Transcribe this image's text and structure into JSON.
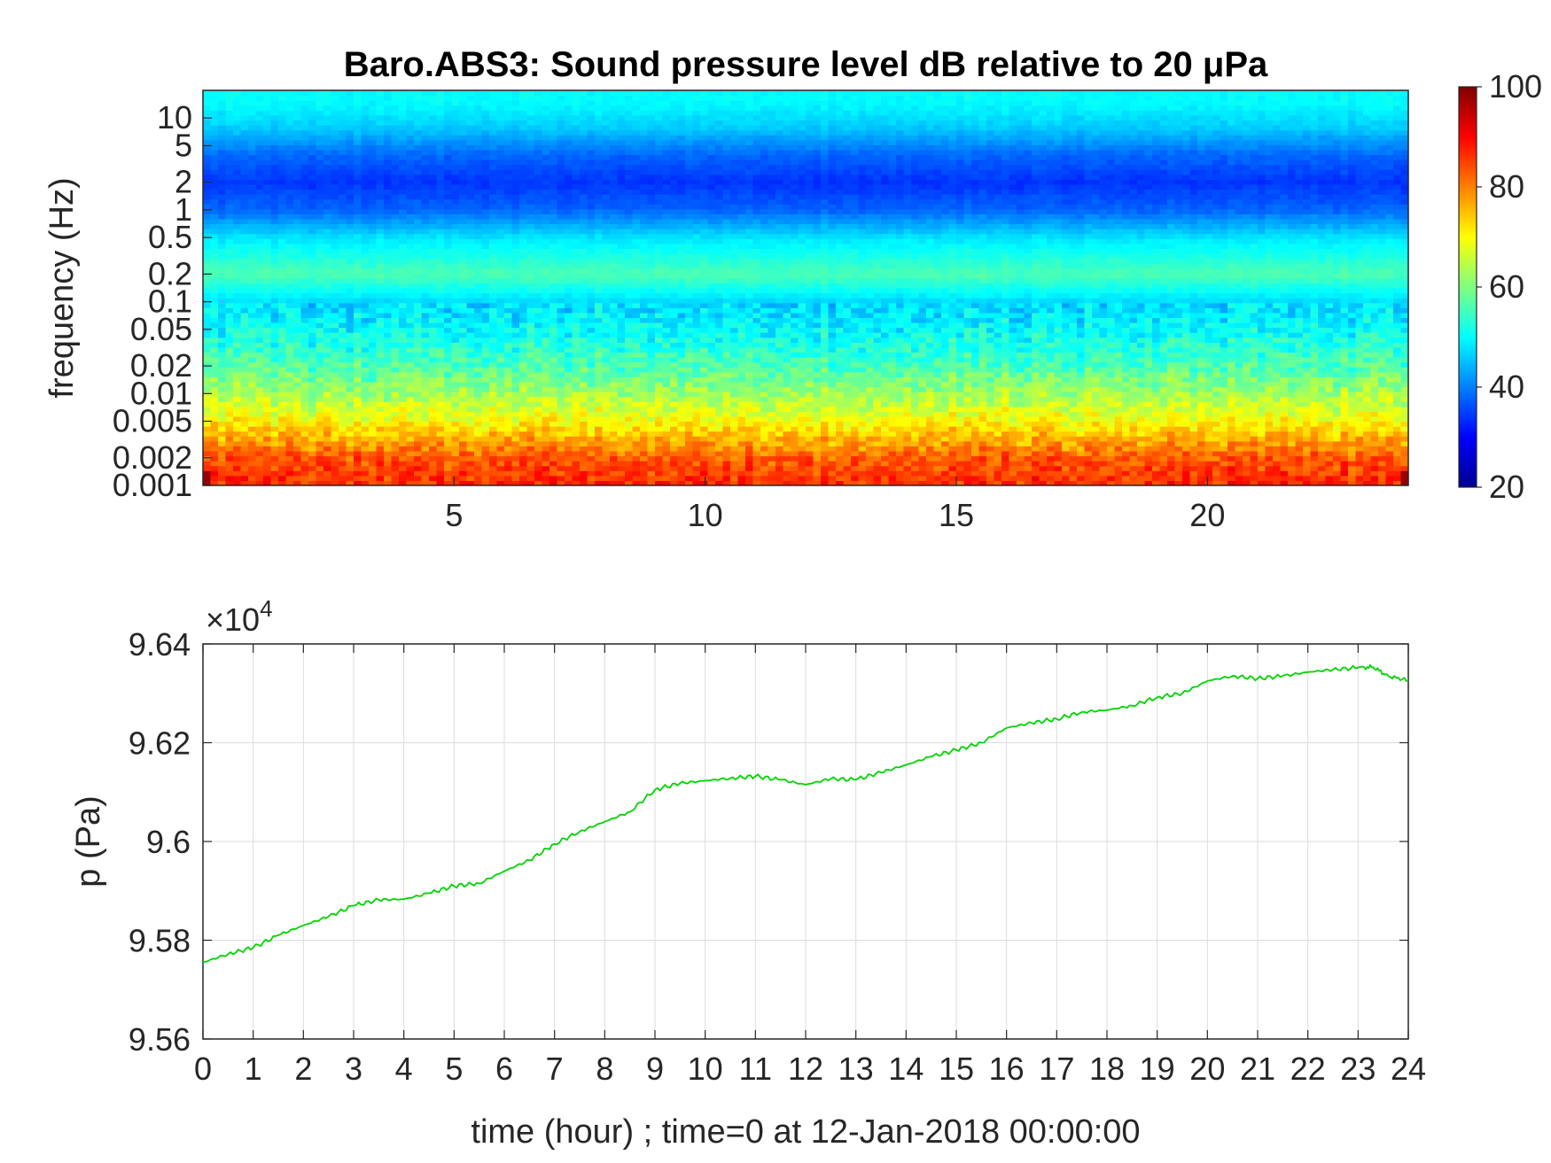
{
  "chart_data": [
    {
      "type": "heatmap",
      "title": "Baro.ABS3: Sound pressure level dB relative to 20 μPa",
      "ylabel": "frequency (Hz)",
      "xlabel": "",
      "x_ticks": [
        "5",
        "10",
        "15",
        "20"
      ],
      "x_tick_values": [
        5,
        10,
        15,
        20
      ],
      "xlim": [
        0,
        24
      ],
      "yscale": "log",
      "ylim": [
        0.001,
        20
      ],
      "y_ticks": [
        "10",
        "5",
        "2",
        "1",
        "0.5",
        "0.2",
        "0.1",
        "0.05",
        "0.02",
        "0.01",
        "0.005",
        "0.002",
        "0.001"
      ],
      "y_tick_values": [
        10,
        5,
        2,
        1,
        0.5,
        0.2,
        0.1,
        0.05,
        0.02,
        0.01,
        0.005,
        0.002,
        0.001
      ],
      "colormap": "jet",
      "colorbar": {
        "range": [
          20,
          100
        ],
        "ticks": [
          "100",
          "80",
          "60",
          "40",
          "20"
        ],
        "tick_values": [
          100,
          80,
          60,
          40,
          20
        ]
      },
      "spectral_profile_db": [
        {
          "freq_hz": 15,
          "db": 50
        },
        {
          "freq_hz": 8,
          "db": 46
        },
        {
          "freq_hz": 4,
          "db": 38
        },
        {
          "freq_hz": 2,
          "db": 34
        },
        {
          "freq_hz": 1,
          "db": 38
        },
        {
          "freq_hz": 0.5,
          "db": 48
        },
        {
          "freq_hz": 0.2,
          "db": 56
        },
        {
          "freq_hz": 0.1,
          "db": 47
        },
        {
          "freq_hz": 0.05,
          "db": 50
        },
        {
          "freq_hz": 0.02,
          "db": 56
        },
        {
          "freq_hz": 0.01,
          "db": 63
        },
        {
          "freq_hz": 0.005,
          "db": 70
        },
        {
          "freq_hz": 0.002,
          "db": 83
        },
        {
          "freq_hz": 0.001,
          "db": 87
        }
      ],
      "grid": false
    },
    {
      "type": "line",
      "ylabel": "p (Pa)",
      "xlabel": "time (hour) ; time=0 at 12-Jan-2018 00:00:00",
      "y_multiplier": "×10",
      "y_multiplier_exp": "4",
      "xlim": [
        0,
        24
      ],
      "ylim": [
        95600,
        96400
      ],
      "x_ticks": [
        "0",
        "1",
        "2",
        "3",
        "4",
        "5",
        "6",
        "7",
        "8",
        "9",
        "10",
        "11",
        "12",
        "13",
        "14",
        "15",
        "16",
        "17",
        "18",
        "19",
        "20",
        "21",
        "22",
        "23",
        "24"
      ],
      "x_tick_values": [
        0,
        1,
        2,
        3,
        4,
        5,
        6,
        7,
        8,
        9,
        10,
        11,
        12,
        13,
        14,
        15,
        16,
        17,
        18,
        19,
        20,
        21,
        22,
        23,
        24
      ],
      "y_ticks": [
        "9.64",
        "9.62",
        "9.6",
        "9.58",
        "9.56"
      ],
      "y_tick_values": [
        96400,
        96200,
        96000,
        95800,
        95600
      ],
      "grid": true,
      "color": "#00d400",
      "series": [
        {
          "x": [
            0,
            0.5,
            1,
            1.5,
            2,
            2.5,
            3,
            3.5,
            4,
            4.5,
            5,
            5.5,
            6,
            6.5,
            7,
            7.5,
            8,
            8.5,
            9,
            9.5,
            10,
            10.5,
            11,
            11.5,
            12,
            12.5,
            13,
            13.5,
            14,
            14.5,
            15,
            15.5,
            16,
            16.5,
            17,
            17.5,
            18,
            18.5,
            19,
            19.5,
            20,
            20.5,
            21,
            21.5,
            22,
            22.5,
            23,
            23.3,
            23.6,
            24
          ],
          "y": [
            95755,
            95772,
            95785,
            95810,
            95830,
            95848,
            95870,
            95882,
            95883,
            95895,
            95910,
            95915,
            95940,
            95962,
            95995,
            96020,
            96040,
            96060,
            96105,
            96118,
            96123,
            96128,
            96132,
            96125,
            96115,
            96127,
            96125,
            96140,
            96155,
            96172,
            96185,
            96200,
            96230,
            96240,
            96248,
            96262,
            96266,
            96275,
            96292,
            96300,
            96325,
            96335,
            96330,
            96335,
            96343,
            96348,
            96352,
            96353,
            96335,
            96326
          ]
        }
      ]
    }
  ]
}
